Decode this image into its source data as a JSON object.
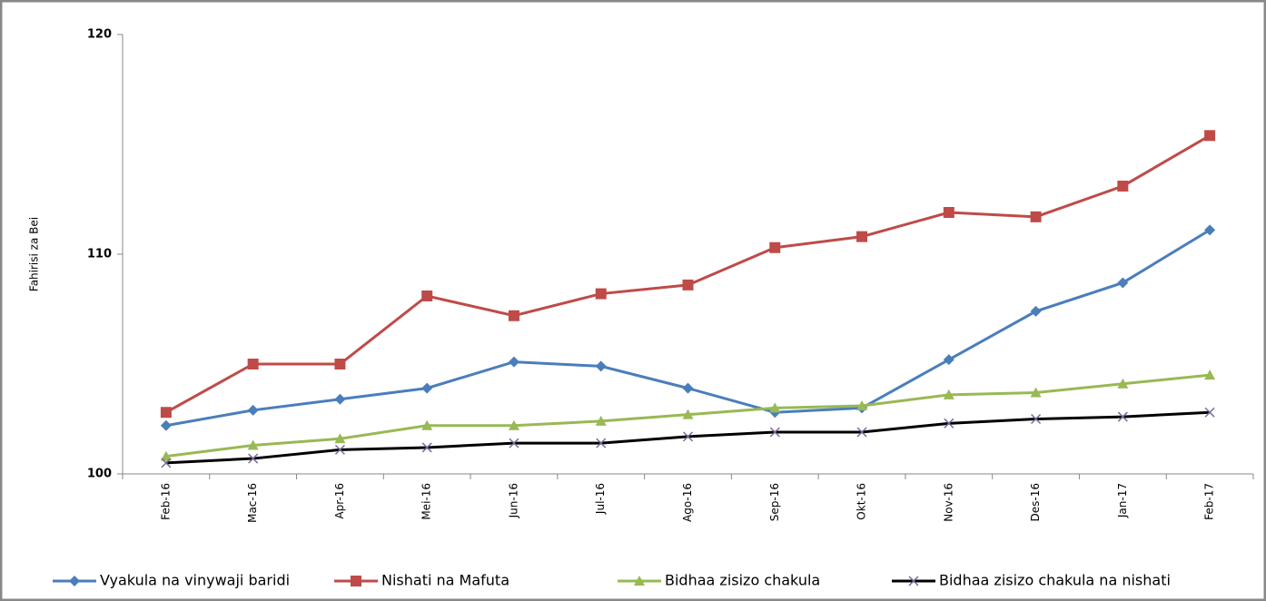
{
  "chart_data": {
    "type": "line",
    "y_label": "Fahirisi za Bei",
    "categories": [
      "Feb-16",
      "Mac-16",
      "Apr-16",
      "Mei-16",
      "Jun-16",
      "Jul-16",
      "Ago-16",
      "Sep-16",
      "Okt-16",
      "Nov-16",
      "Des-16",
      "Jan-17",
      "Feb-17"
    ],
    "series": [
      {
        "name": "Vyakula na vinywaji baridi",
        "color": "#4a7ebb",
        "marker": "diamond",
        "values": [
          102.2,
          102.9,
          103.4,
          103.9,
          105.1,
          104.9,
          103.9,
          102.8,
          103.0,
          105.2,
          107.4,
          108.7,
          111.1
        ]
      },
      {
        "name": "Nishati na Mafuta",
        "color": "#be4b48",
        "marker": "square",
        "values": [
          102.8,
          105.0,
          105.0,
          108.1,
          107.2,
          108.2,
          108.6,
          110.3,
          110.8,
          111.9,
          111.7,
          113.1,
          115.4
        ]
      },
      {
        "name": "Bidhaa zisizo chakula",
        "color": "#98b954",
        "marker": "triangle",
        "values": [
          100.8,
          101.3,
          101.6,
          102.2,
          102.2,
          102.4,
          102.7,
          103.0,
          103.1,
          103.6,
          103.7,
          104.1,
          104.5
        ]
      },
      {
        "name": "Bidhaa zisizo chakula na nishati",
        "color": "#000000",
        "marker": "x",
        "values": [
          100.5,
          100.7,
          101.1,
          101.2,
          101.4,
          101.4,
          101.7,
          101.9,
          101.9,
          102.3,
          102.5,
          102.6,
          102.8
        ]
      }
    ],
    "ylim": [
      100,
      120
    ],
    "yticks": [
      100,
      110,
      120
    ],
    "legend": "bottom"
  }
}
